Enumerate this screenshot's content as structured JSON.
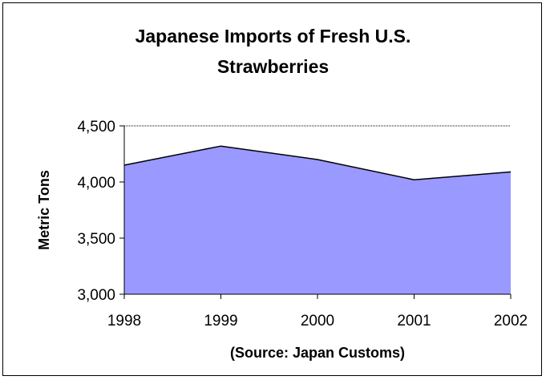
{
  "chart_data": {
    "type": "area",
    "title_lines": [
      "Japanese Imports of Fresh U.S.",
      "Strawberries"
    ],
    "ylabel": "Metric Tons",
    "xlabel": "(Source:  Japan Customs)",
    "x": [
      "1998",
      "1999",
      "2000",
      "2001",
      "2002"
    ],
    "values": [
      4150,
      4320,
      4200,
      4020,
      4090
    ],
    "ylim": [
      3000,
      4500
    ],
    "yticks": [
      3000,
      3500,
      4000,
      4500
    ],
    "ytick_labels": [
      "3,000",
      "3,500",
      "4,000",
      "4,500"
    ],
    "grid": "top gridline only (dotted)",
    "legend": "none",
    "fill_color": "#9999ff",
    "line_color": "#000000"
  }
}
